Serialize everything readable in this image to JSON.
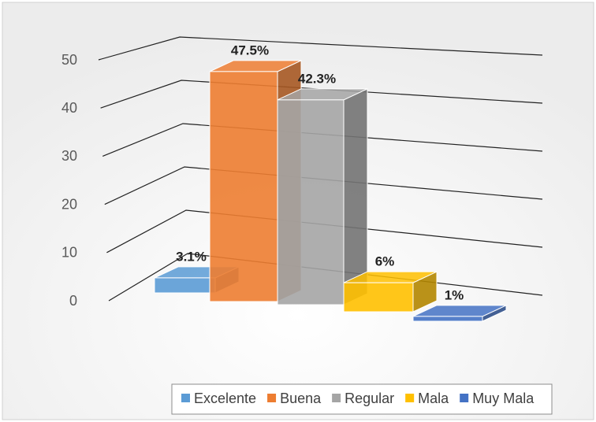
{
  "chart_data": {
    "type": "bar3d",
    "series": [
      {
        "name": "Excelente",
        "color": "#5b9bd5",
        "values": [
          3.1
        ],
        "value_labels": [
          "3.1%"
        ]
      },
      {
        "name": "Buena",
        "color": "#ed7d31",
        "values": [
          47.5
        ],
        "value_labels": [
          "47.5%"
        ]
      },
      {
        "name": "Regular",
        "color": "#a5a5a5",
        "values": [
          42.3
        ],
        "value_labels": [
          "42.3%"
        ]
      },
      {
        "name": "Mala",
        "color": "#ffc000",
        "values": [
          6
        ],
        "value_labels": [
          "6%"
        ]
      },
      {
        "name": "Muy Mala",
        "color": "#4472c4",
        "values": [
          1
        ],
        "value_labels": [
          "1%"
        ]
      }
    ],
    "ylim": [
      0,
      50
    ],
    "yticks": [
      0,
      10,
      20,
      30,
      40,
      50
    ],
    "grid": true,
    "legend": "bottom"
  }
}
